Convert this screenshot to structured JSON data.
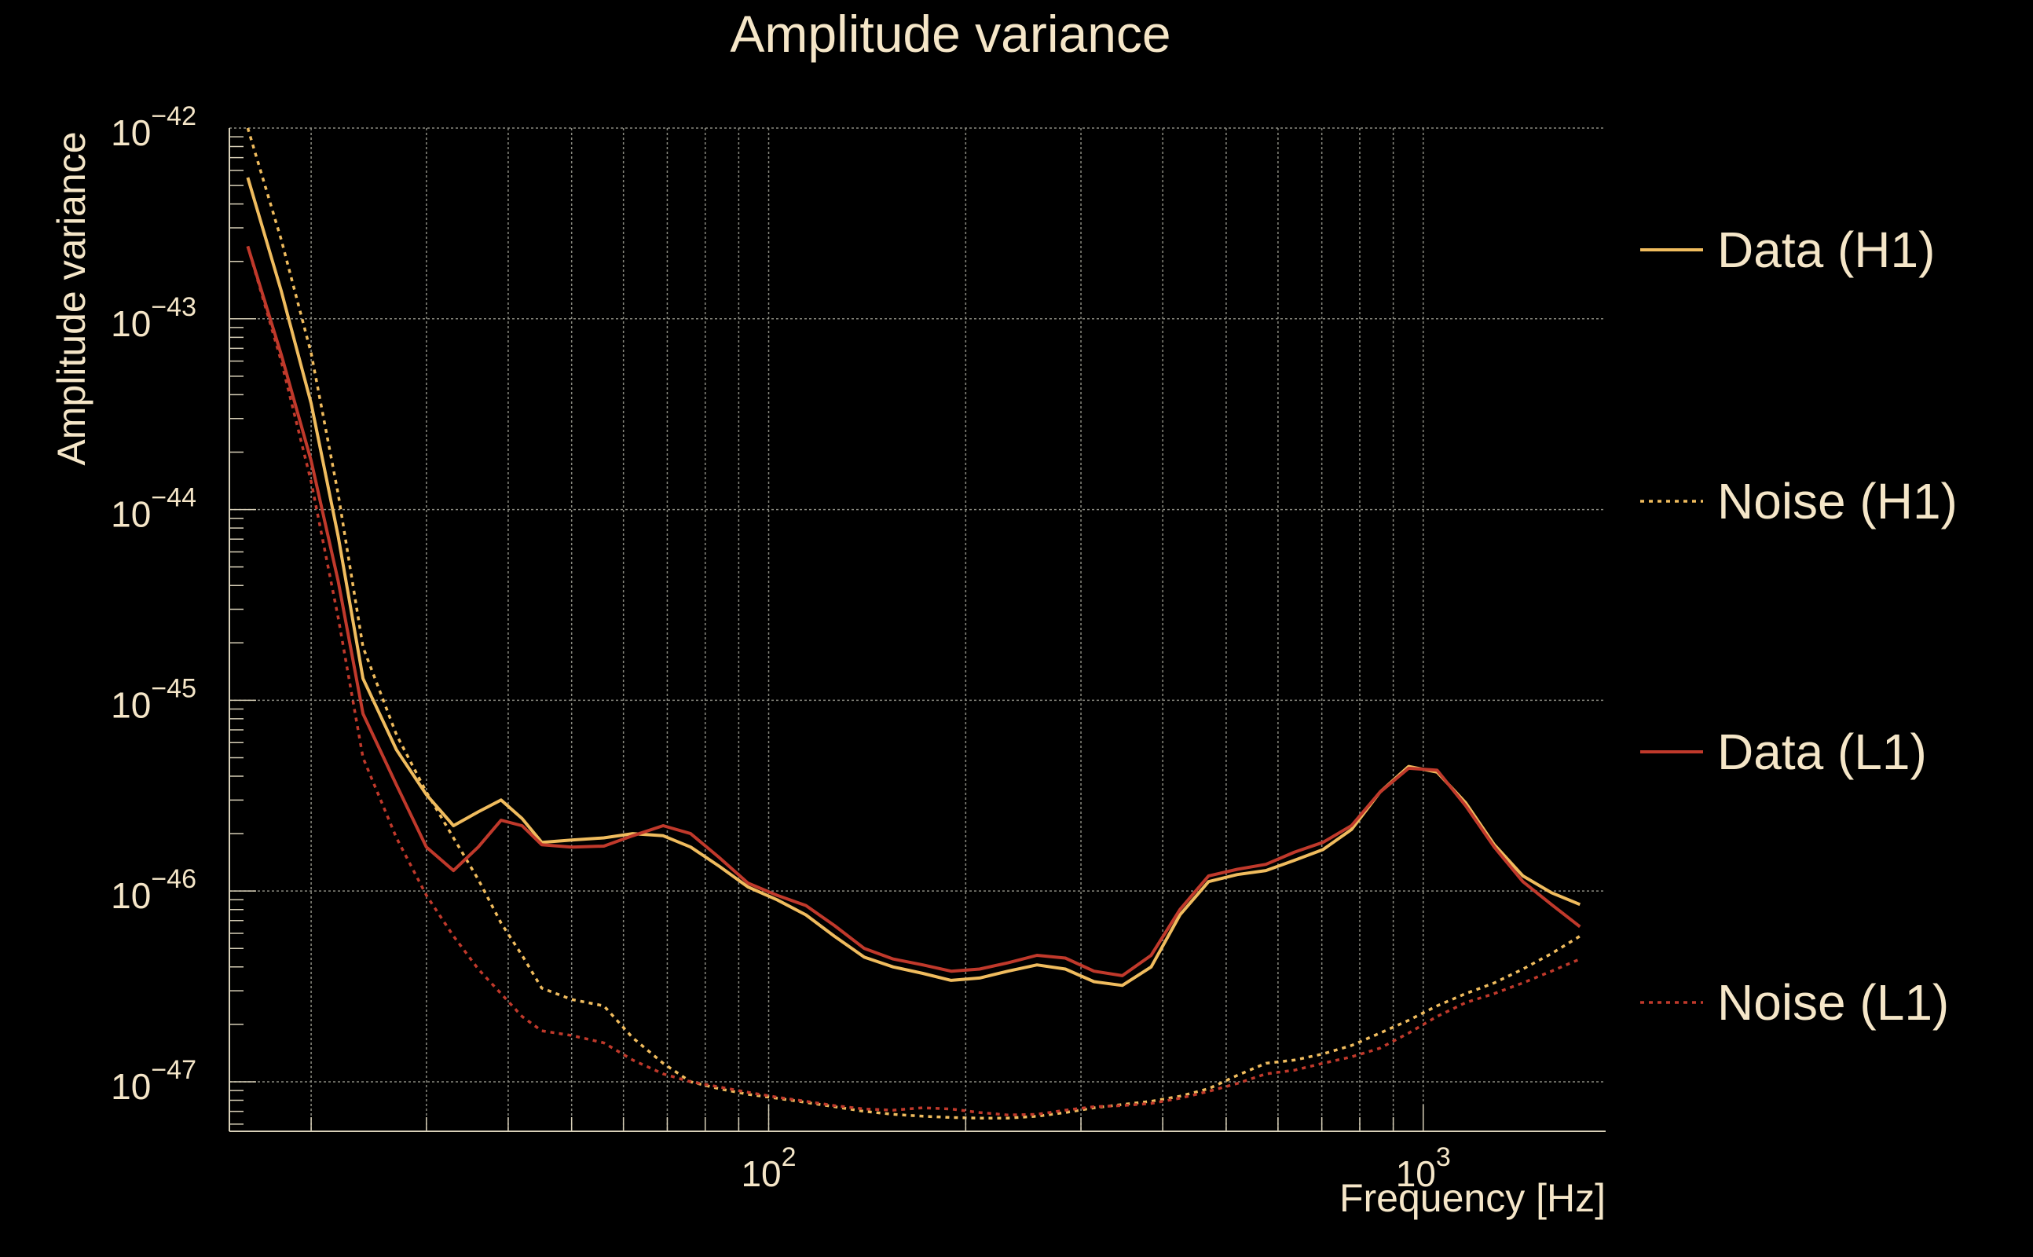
{
  "chart_data": {
    "type": "line",
    "title": "Amplitude variance",
    "xlabel": "Frequency [Hz]",
    "ylabel": "Amplitude variance",
    "x_scale": "log",
    "y_scale": "log",
    "xlim": [
      15,
      1900
    ],
    "ylim": [
      5.5e-48,
      1e-42
    ],
    "x_ticks": [
      {
        "value": 100,
        "base": "10",
        "exp": "2"
      },
      {
        "value": 1000,
        "base": "10",
        "exp": "3"
      }
    ],
    "y_ticks": [
      {
        "value": 1e-42,
        "base": "10",
        "exp": "−42"
      },
      {
        "value": 1e-43,
        "base": "10",
        "exp": "−43"
      },
      {
        "value": 1e-44,
        "base": "10",
        "exp": "−44"
      },
      {
        "value": 1e-45,
        "base": "10",
        "exp": "−45"
      },
      {
        "value": 1e-46,
        "base": "10",
        "exp": "−46"
      },
      {
        "value": 1e-47,
        "base": "10",
        "exp": "−47"
      }
    ],
    "grid": true,
    "legend_position": "right",
    "colors": {
      "background": "#000000",
      "text": "#f5e6c8",
      "grid": "#8a8a80",
      "axis": "#d8d0b8",
      "h1": "#f0bc5e",
      "l1": "#c0392b"
    },
    "series": [
      {
        "name": "Data (H1)",
        "color": "#f0bc5e",
        "dash": "solid",
        "x": [
          16,
          18,
          20,
          22,
          24,
          27,
          30,
          33,
          36,
          39,
          42,
          45,
          50,
          56,
          62,
          69,
          76,
          84,
          93,
          103,
          114,
          126,
          140,
          155,
          172,
          190,
          210,
          232,
          257,
          284,
          314,
          347,
          384,
          425,
          470,
          520,
          575,
          636,
          703,
          777,
          859,
          950,
          1050,
          1161,
          1284,
          1420,
          1570,
          1736
        ],
        "y": [
          5.5e-43,
          1.4e-43,
          3.6e-44,
          7.2e-45,
          1.3e-45,
          5.5e-46,
          3.2e-46,
          2.2e-46,
          2.6e-46,
          3e-46,
          2.4e-46,
          1.8e-46,
          1.85e-46,
          1.9e-46,
          2e-46,
          1.95e-46,
          1.7e-46,
          1.35e-46,
          1.05e-46,
          9e-47,
          7.5e-47,
          5.8e-47,
          4.5e-47,
          4e-47,
          3.7e-47,
          3.4e-47,
          3.5e-47,
          3.8e-47,
          4.1e-47,
          3.9e-47,
          3.35e-47,
          3.2e-47,
          4e-47,
          7.5e-47,
          1.12e-46,
          1.22e-46,
          1.28e-46,
          1.45e-46,
          1.65e-46,
          2.1e-46,
          3.3e-46,
          4.5e-46,
          4.2e-46,
          2.9e-46,
          1.75e-46,
          1.2e-46,
          9.8e-47,
          8.5e-47
        ]
      },
      {
        "name": "Noise (H1)",
        "color": "#f0bc5e",
        "dash": "dotted",
        "x": [
          16,
          18,
          20,
          22,
          24,
          27,
          30,
          33,
          36,
          39,
          42,
          45,
          50,
          56,
          62,
          69,
          76,
          84,
          93,
          103,
          114,
          126,
          140,
          155,
          172,
          190,
          210,
          232,
          257,
          284,
          314,
          347,
          384,
          425,
          470,
          520,
          575,
          636,
          703,
          777,
          859,
          950,
          1050,
          1161,
          1284,
          1420,
          1570,
          1736
        ],
        "y": [
          1e-42,
          2.6e-43,
          6.6e-44,
          1.2e-44,
          1.9e-45,
          6.6e-46,
          3.3e-46,
          1.9e-46,
          1.15e-46,
          6.8e-47,
          4.6e-47,
          3.1e-47,
          2.7e-47,
          2.5e-47,
          1.7e-47,
          1.25e-47,
          1e-47,
          9.2e-48,
          8.6e-48,
          8.2e-48,
          7.8e-48,
          7.4e-48,
          7e-48,
          6.75e-48,
          6.6e-48,
          6.5e-48,
          6.45e-48,
          6.45e-48,
          6.6e-48,
          6.9e-48,
          7.3e-48,
          7.6e-48,
          7.9e-48,
          8.4e-48,
          9.2e-48,
          1.08e-47,
          1.25e-47,
          1.3e-47,
          1.4e-47,
          1.55e-47,
          1.8e-47,
          2.1e-47,
          2.5e-47,
          2.9e-47,
          3.3e-47,
          3.9e-47,
          4.7e-47,
          5.8e-47
        ]
      },
      {
        "name": "Data (L1)",
        "color": "#c0392b",
        "dash": "solid",
        "x": [
          16,
          18,
          20,
          22,
          24,
          27,
          30,
          33,
          36,
          39,
          42,
          45,
          50,
          56,
          62,
          69,
          76,
          84,
          93,
          103,
          114,
          126,
          140,
          155,
          172,
          190,
          210,
          232,
          257,
          284,
          314,
          347,
          384,
          425,
          470,
          520,
          575,
          636,
          703,
          777,
          859,
          950,
          1050,
          1161,
          1284,
          1420,
          1570,
          1736
        ],
        "y": [
          2.4e-43,
          6.5e-44,
          1.8e-44,
          4.2e-45,
          8.5e-46,
          3.6e-46,
          1.7e-46,
          1.28e-46,
          1.7e-46,
          2.35e-46,
          2.2e-46,
          1.75e-46,
          1.7e-46,
          1.72e-46,
          1.95e-46,
          2.2e-46,
          2e-46,
          1.5e-46,
          1.1e-46,
          9.5e-47,
          8.4e-47,
          6.6e-47,
          5e-47,
          4.4e-47,
          4.1e-47,
          3.8e-47,
          3.9e-47,
          4.2e-47,
          4.6e-47,
          4.45e-47,
          3.8e-47,
          3.6e-47,
          4.6e-47,
          8e-47,
          1.2e-46,
          1.3e-46,
          1.38e-46,
          1.6e-46,
          1.8e-46,
          2.2e-46,
          3.3e-46,
          4.4e-46,
          4.3e-46,
          2.8e-46,
          1.7e-46,
          1.12e-46,
          8.5e-47,
          6.5e-47
        ]
      },
      {
        "name": "Noise (L1)",
        "color": "#c0392b",
        "dash": "dotted",
        "x": [
          16,
          18,
          20,
          22,
          24,
          27,
          30,
          33,
          36,
          39,
          42,
          45,
          50,
          56,
          62,
          69,
          76,
          84,
          93,
          103,
          114,
          126,
          140,
          155,
          172,
          190,
          210,
          232,
          257,
          284,
          314,
          347,
          384,
          425,
          470,
          520,
          575,
          636,
          703,
          777,
          859,
          950,
          1050,
          1161,
          1284,
          1420,
          1570,
          1736
        ],
        "y": [
          2.4e-43,
          6e-44,
          1.4e-44,
          2.7e-45,
          5e-46,
          1.9e-46,
          9.5e-47,
          5.8e-47,
          3.9e-47,
          2.9e-47,
          2.2e-47,
          1.85e-47,
          1.75e-47,
          1.6e-47,
          1.3e-47,
          1.1e-47,
          1e-47,
          9.4e-48,
          8.8e-48,
          8.3e-48,
          7.9e-48,
          7.5e-48,
          7.2e-48,
          7.1e-48,
          7.3e-48,
          7.2e-48,
          6.9e-48,
          6.7e-48,
          6.75e-48,
          7.1e-48,
          7.4e-48,
          7.5e-48,
          7.7e-48,
          8.2e-48,
          8.9e-48,
          9.8e-48,
          1.1e-47,
          1.15e-47,
          1.25e-47,
          1.35e-47,
          1.5e-47,
          1.8e-47,
          2.2e-47,
          2.6e-47,
          2.9e-47,
          3.3e-47,
          3.8e-47,
          4.4e-47
        ]
      }
    ]
  }
}
